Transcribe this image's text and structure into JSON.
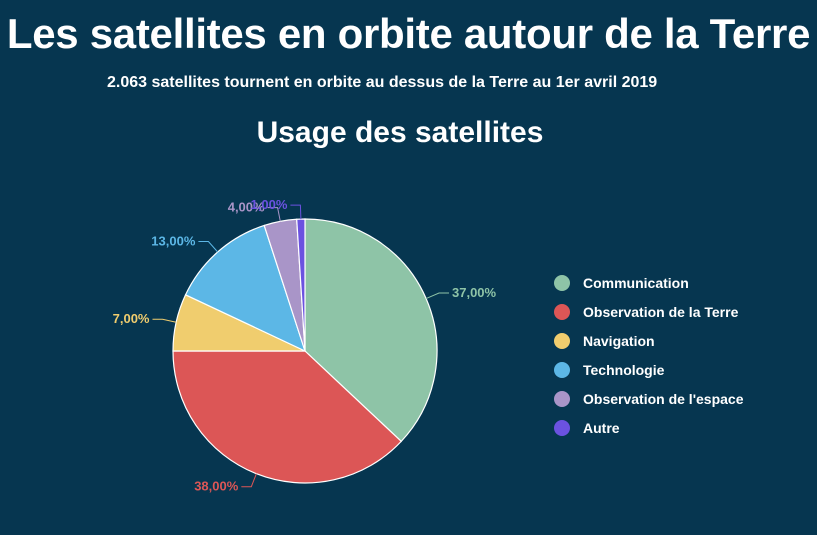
{
  "header": {
    "title": "Les satellites en orbite autour de la Terre",
    "subtitle": "2.063 satellites tournent en orbite au dessus de la Terre au 1er avril 2019"
  },
  "chart_data": {
    "type": "pie",
    "title": "Usage des satellites",
    "legend_position": "right",
    "slices": [
      {
        "label": "Communication",
        "value": 37,
        "display": "37,00%",
        "color": "#8ec4a7"
      },
      {
        "label": "Observation de la Terre",
        "value": 38,
        "display": "38,00%",
        "color": "#dc5656"
      },
      {
        "label": "Navigation",
        "value": 7,
        "display": "7,00%",
        "color": "#f0cd6e"
      },
      {
        "label": "Technologie",
        "value": 13,
        "display": "13,00%",
        "color": "#5cb7e6"
      },
      {
        "label": "Observation de l'espace",
        "value": 4,
        "display": "4,00%",
        "color": "#a995c8"
      },
      {
        "label": "Autre",
        "value": 1,
        "display": "1,00%",
        "color": "#6b52e0"
      }
    ]
  }
}
